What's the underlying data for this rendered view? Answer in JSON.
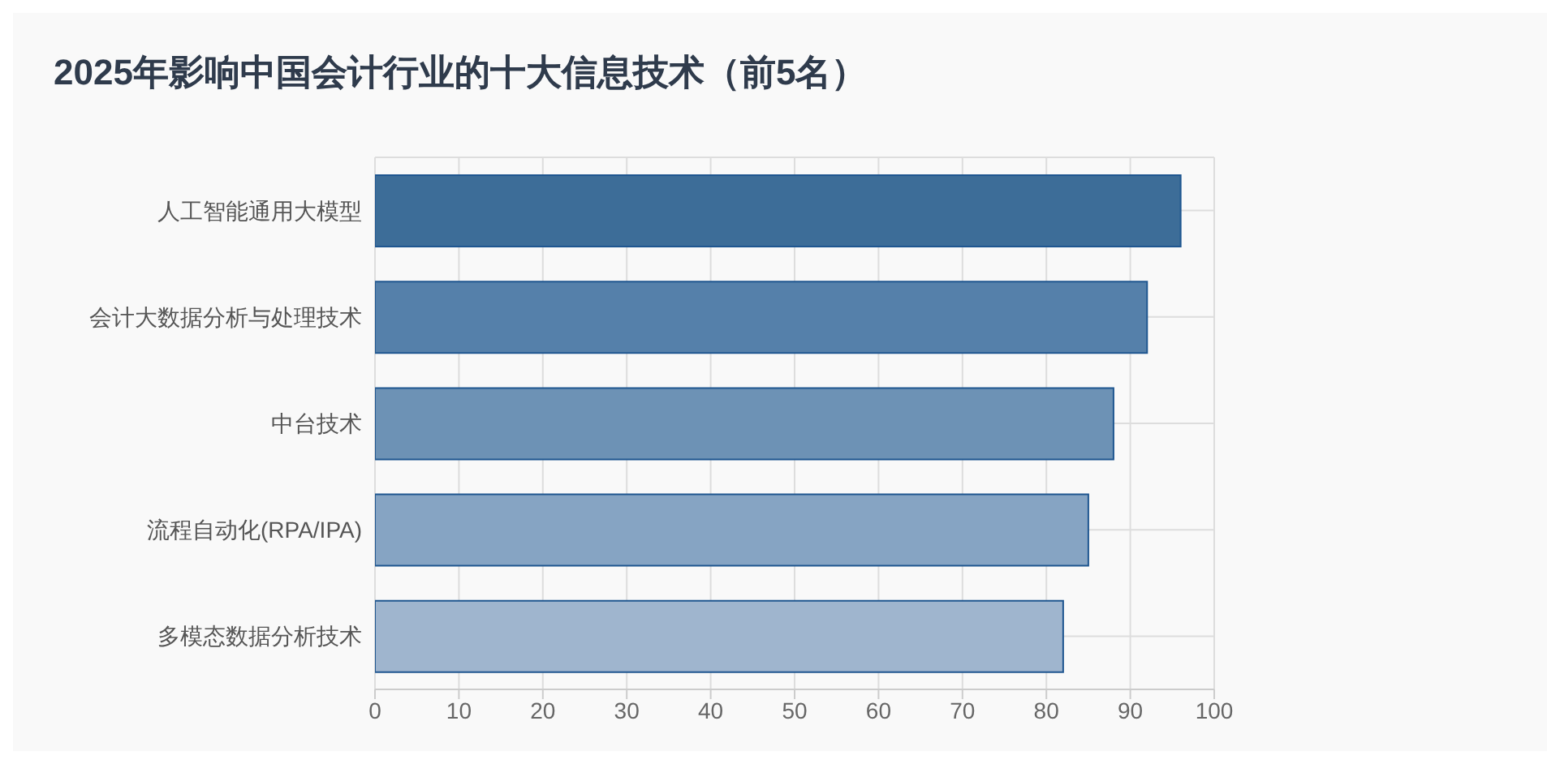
{
  "chart_data": {
    "type": "bar",
    "orientation": "horizontal",
    "title": "2025年影响中国会计行业的十大信息技术（前5名）",
    "categories": [
      "人工智能通用大模型",
      "会计大数据分析与处理技术",
      "中台技术",
      "流程自动化(RPA/IPA)",
      "多模态数据分析技术"
    ],
    "values": [
      96,
      92,
      88,
      85,
      82
    ],
    "colors": [
      "#3d6d98",
      "#5580aa",
      "#6d92b5",
      "#86a4c3",
      "#9fb5ce"
    ],
    "xlim": [
      0,
      100
    ],
    "xticks": [
      0,
      10,
      20,
      30,
      40,
      50,
      60,
      70,
      80,
      90,
      100
    ],
    "grid": true
  }
}
